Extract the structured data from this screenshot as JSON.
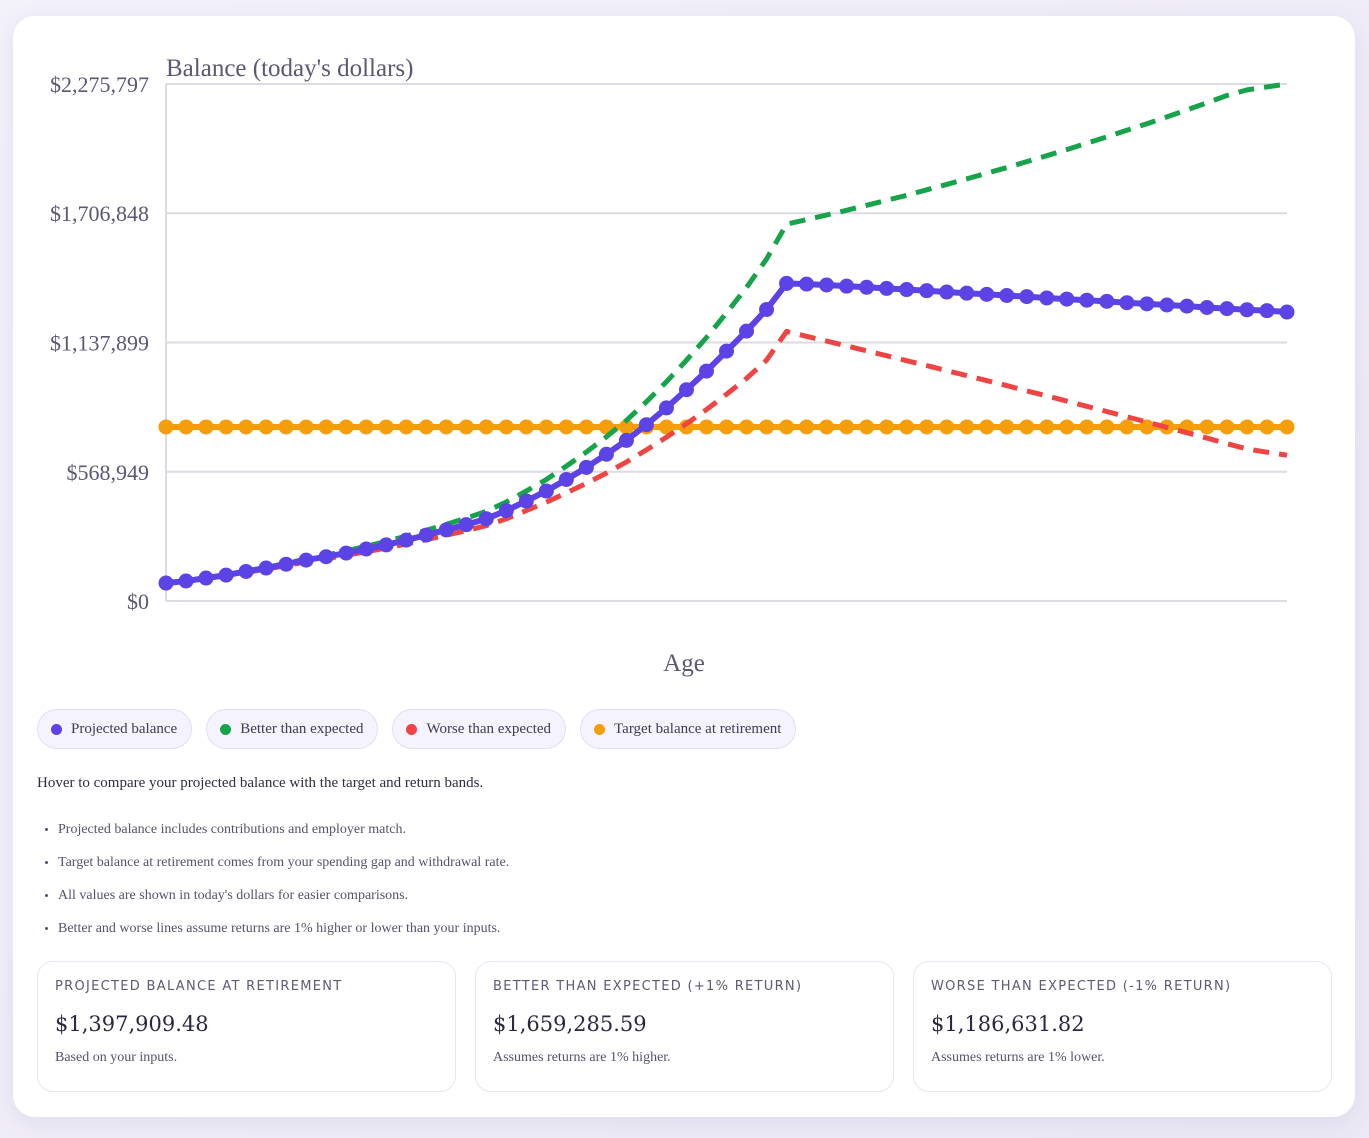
{
  "chart_data": {
    "type": "line",
    "title": "Balance (today's dollars)",
    "xlabel": "Age",
    "ylabel": "Balance (today's dollars)",
    "ylim": [
      0,
      2275797
    ],
    "yticks": [
      0,
      568949,
      1137899,
      1706848,
      2275797
    ],
    "ytick_labels": [
      "$0",
      "$568,949",
      "$1,137,899",
      "$1,706,848",
      "$2,275,797"
    ],
    "grid": true,
    "retirement_index": 31,
    "series": [
      {
        "name": "Projected balance",
        "color": "#5b43e6",
        "style": "solid-markers",
        "values": [
          79000,
          88000,
          101000,
          114000,
          130000,
          145000,
          162000,
          180000,
          195000,
          211000,
          229000,
          247000,
          268000,
          290000,
          313000,
          336000,
          362000,
          398000,
          440000,
          484000,
          535000,
          588000,
          646000,
          707000,
          776000,
          850000,
          930000,
          1012000,
          1100000,
          1188000,
          1283000,
          1397909,
          1395000,
          1391000,
          1386000,
          1381000,
          1376000,
          1371000,
          1366000,
          1360000,
          1355000,
          1350000,
          1345000,
          1340000,
          1334000,
          1329000,
          1324000,
          1319000,
          1313000,
          1308000,
          1303000,
          1298000,
          1292000,
          1287000,
          1282000,
          1278000,
          1272000
        ]
      },
      {
        "name": "Better than expected",
        "color": "#16a34a",
        "style": "dashed",
        "values": [
          79000,
          88000,
          101000,
          115000,
          132000,
          148000,
          166000,
          185000,
          202000,
          221000,
          241000,
          262000,
          286000,
          311000,
          337000,
          365000,
          395000,
          436000,
          484000,
          535000,
          594000,
          656000,
          723000,
          795000,
          877000,
          965000,
          1060000,
          1160000,
          1268000,
          1380000,
          1505000,
          1659286,
          1679000,
          1699000,
          1720000,
          1742000,
          1764000,
          1786000,
          1810000,
          1834000,
          1858000,
          1883000,
          1908000,
          1934000,
          1960000,
          1987000,
          2015000,
          2043000,
          2072000,
          2101000,
          2131000,
          2162000,
          2193000,
          2225000,
          2250000,
          2263000,
          2275797
        ]
      },
      {
        "name": "Worse than expected",
        "color": "#ef4444",
        "style": "dashed",
        "values": [
          79000,
          87000,
          99000,
          111000,
          126000,
          140000,
          156000,
          172000,
          186000,
          201000,
          217000,
          233000,
          251000,
          270000,
          290000,
          310000,
          332000,
          362000,
          398000,
          435000,
          476000,
          518000,
          563000,
          612000,
          665000,
          721000,
          780000,
          843000,
          910000,
          980000,
          1060000,
          1186632,
          1165000,
          1144000,
          1123000,
          1101000,
          1080000,
          1058000,
          1036000,
          1014000,
          992000,
          970000,
          948000,
          925000,
          903000,
          880000,
          857000,
          834000,
          811000,
          788000,
          764000,
          741000,
          717000,
          693000,
          669000,
          655000,
          642000
        ]
      },
      {
        "name": "Target balance at retirement",
        "color": "#f59e0b",
        "style": "solid-markers",
        "constant": 766000
      }
    ]
  },
  "legend": [
    {
      "label": "Projected balance",
      "color": "#5b43e6"
    },
    {
      "label": "Better than expected",
      "color": "#16a34a"
    },
    {
      "label": "Worse than expected",
      "color": "#ef4444"
    },
    {
      "label": "Target balance at retirement",
      "color": "#f59e0b"
    }
  ],
  "hint": "Hover to compare your projected balance with the target and return bands.",
  "notes": [
    "Projected balance includes contributions and employer match.",
    "Target balance at retirement comes from your spending gap and withdrawal rate.",
    "All values are shown in today's dollars for easier comparisons.",
    "Better and worse lines assume returns are 1% higher or lower than your inputs."
  ],
  "stats": [
    {
      "label": "Projected balance at retirement",
      "value": "$1,397,909.48",
      "sub": "Based on your inputs."
    },
    {
      "label": "Better than expected (+1% return)",
      "value": "$1,659,285.59",
      "sub": "Assumes returns are 1% higher."
    },
    {
      "label": "Worse than expected (-1% return)",
      "value": "$1,186,631.82",
      "sub": "Assumes returns are 1% lower."
    }
  ]
}
